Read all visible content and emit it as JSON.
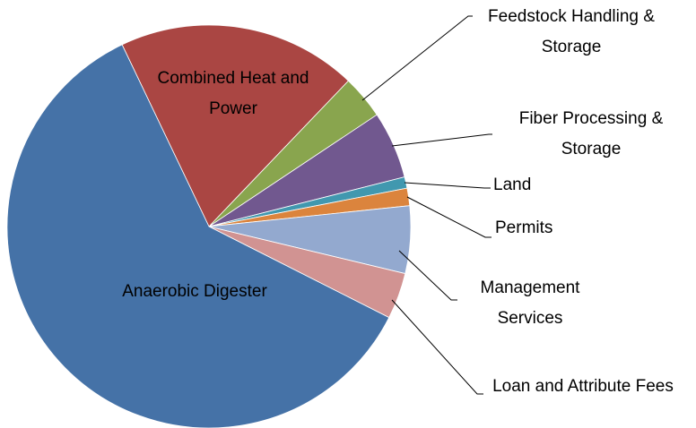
{
  "chart_data": {
    "type": "pie",
    "categories": [
      "Combined Heat and Power",
      "Feedstock Handling & Storage",
      "Fiber Processing & Storage",
      "Land",
      "Permits",
      "Management Services",
      "Loan and Attribute Fees",
      "Anaerobic Digester"
    ],
    "values": [
      19.2,
      3.5,
      5.4,
      0.9,
      1.4,
      5.4,
      3.7,
      60.4
    ],
    "colors": [
      "#aa4643",
      "#89a54e",
      "#71588f",
      "#4198af",
      "#db843d",
      "#93a9cf",
      "#d19392",
      "#4572a7"
    ]
  }
}
